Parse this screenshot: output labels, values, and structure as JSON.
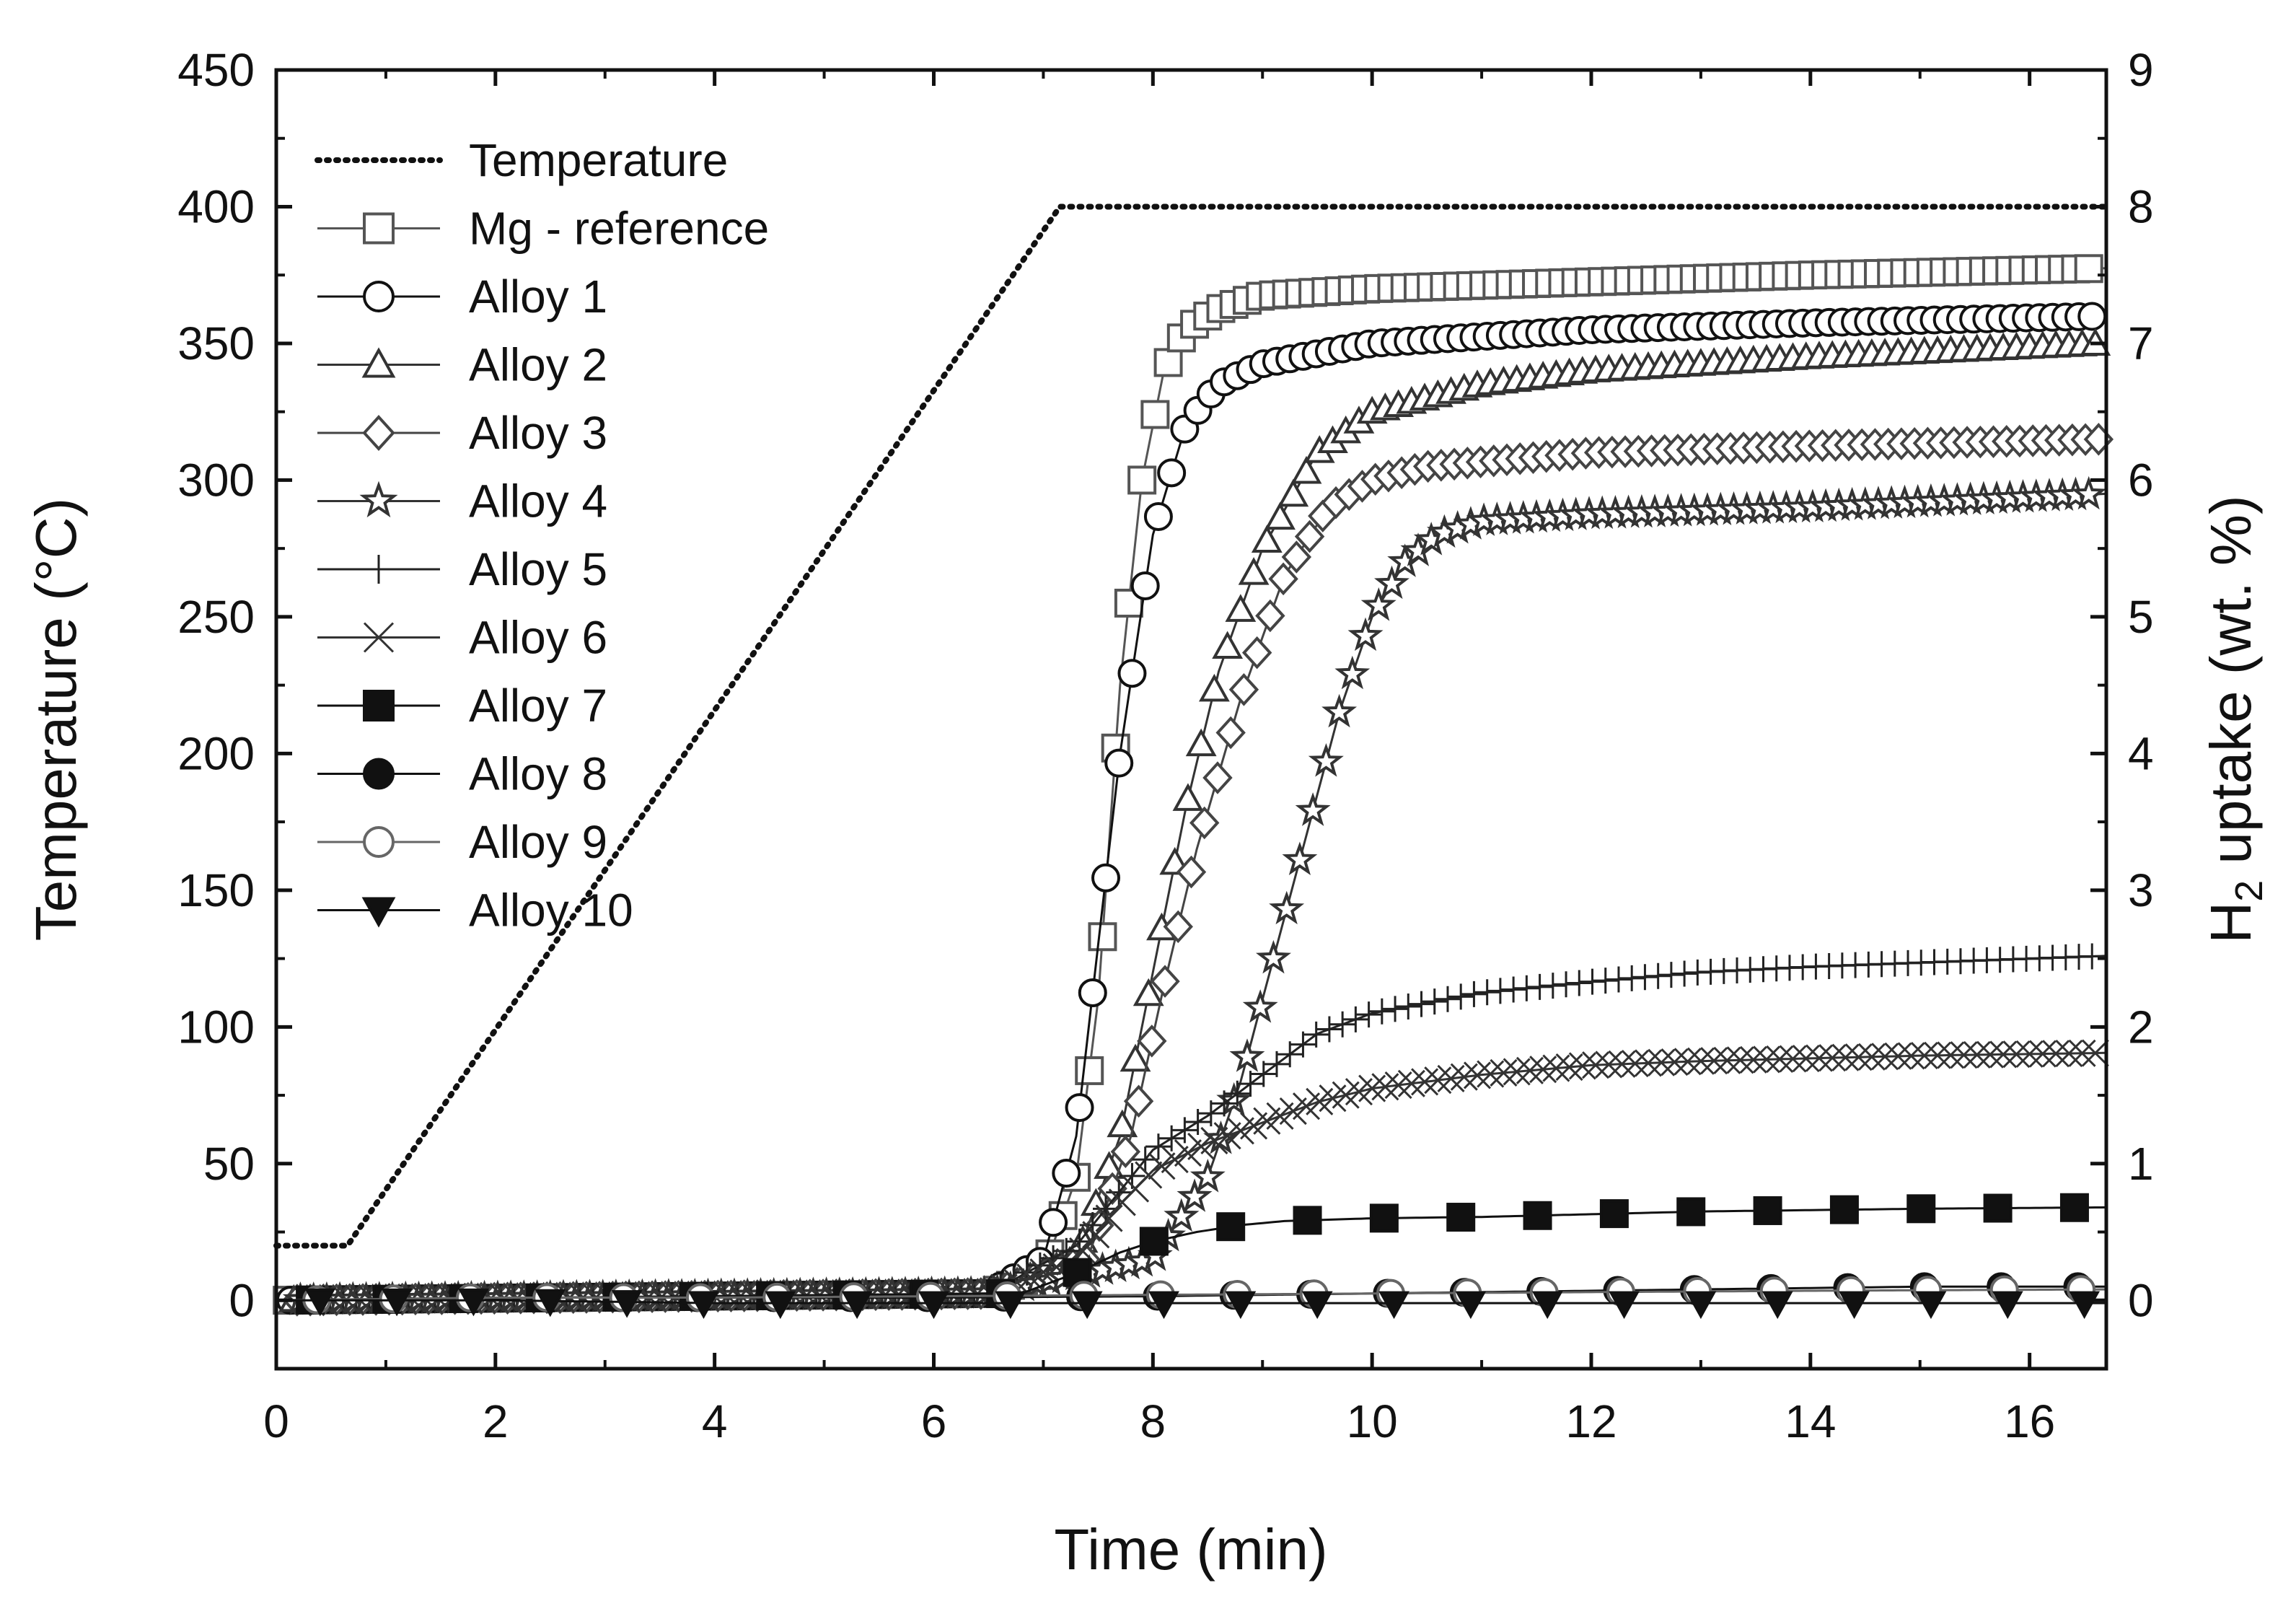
{
  "chart_data": {
    "type": "line",
    "title": "",
    "xlabel": "Time (min)",
    "ylabel": "Temperature (°C)",
    "y2label_prefix": "H",
    "y2label_sub": "2",
    "y2label_suffix": " uptake (wt. %)",
    "xlim": [
      0,
      16.7
    ],
    "ylim": [
      -25,
      450
    ],
    "y2lim": [
      -0.5,
      9
    ],
    "x_ticks": [
      "0",
      "2",
      "4",
      "6",
      "8",
      "10",
      "12",
      "14",
      "16"
    ],
    "y_ticks": [
      "0",
      "50",
      "100",
      "150",
      "200",
      "250",
      "300",
      "350",
      "400",
      "450"
    ],
    "y2_ticks": [
      "0",
      "1",
      "2",
      "3",
      "4",
      "5",
      "6",
      "7",
      "8",
      "9"
    ],
    "legend_position": "top-left",
    "temperature": {
      "name": "Temperature",
      "x": [
        0,
        0.65,
        7.15,
        16.7
      ],
      "y": [
        20,
        20,
        400,
        400
      ]
    },
    "series": [
      {
        "name": "Mg - reference",
        "marker": "square-open",
        "color": "#555555",
        "x": [
          0,
          6.5,
          7.0,
          7.3,
          7.5,
          7.7,
          7.9,
          8.1,
          8.3,
          8.6,
          9.0,
          10,
          12,
          14,
          16.7
        ],
        "y": [
          0,
          0.05,
          0.2,
          0.9,
          2.2,
          4.5,
          6.0,
          6.8,
          7.1,
          7.25,
          7.35,
          7.4,
          7.45,
          7.5,
          7.55
        ]
      },
      {
        "name": "Alloy 1",
        "marker": "circle-open",
        "color": "#111111",
        "x": [
          0,
          6.5,
          7.0,
          7.3,
          7.5,
          7.7,
          8.0,
          8.3,
          8.6,
          9.0,
          10,
          12,
          14,
          16.7
        ],
        "y": [
          0,
          0.05,
          0.3,
          1.2,
          2.6,
          4.0,
          5.6,
          6.4,
          6.7,
          6.85,
          7.0,
          7.1,
          7.15,
          7.2
        ]
      },
      {
        "name": "Alloy 2",
        "marker": "triangle-open",
        "color": "#333333",
        "x": [
          0,
          6.5,
          7.3,
          7.7,
          8.0,
          8.3,
          8.6,
          9.0,
          9.5,
          10,
          11,
          12,
          14,
          16.7
        ],
        "y": [
          0,
          0.05,
          0.3,
          1.2,
          2.4,
          3.6,
          4.6,
          5.5,
          6.2,
          6.5,
          6.7,
          6.8,
          6.9,
          7.0
        ]
      },
      {
        "name": "Alloy 3",
        "marker": "diamond-open",
        "color": "#444444",
        "x": [
          0,
          6.5,
          7.4,
          7.8,
          8.1,
          8.4,
          8.8,
          9.2,
          9.6,
          10,
          10.5,
          12,
          14,
          16.7
        ],
        "y": [
          0,
          0.05,
          0.3,
          1.2,
          2.3,
          3.3,
          4.4,
          5.3,
          5.8,
          6.0,
          6.1,
          6.2,
          6.25,
          6.3
        ]
      },
      {
        "name": "Alloy 4",
        "marker": "star-open",
        "color": "#333333",
        "x": [
          0,
          6.5,
          8.0,
          8.5,
          8.8,
          9.1,
          9.4,
          9.7,
          10,
          10.3,
          10.6,
          11,
          12,
          14,
          16.7
        ],
        "y": [
          0,
          0.05,
          0.3,
          0.9,
          1.6,
          2.5,
          3.4,
          4.3,
          5.0,
          5.4,
          5.6,
          5.7,
          5.75,
          5.8,
          5.9
        ]
      },
      {
        "name": "Alloy 5",
        "marker": "plus",
        "color": "#222222",
        "x": [
          0,
          6.5,
          7.3,
          7.7,
          8.0,
          8.5,
          9.0,
          9.5,
          10,
          11,
          12,
          13,
          14,
          15,
          16.7
        ],
        "y": [
          0,
          0.05,
          0.4,
          0.8,
          1.1,
          1.35,
          1.65,
          1.95,
          2.1,
          2.25,
          2.33,
          2.4,
          2.44,
          2.47,
          2.52
        ]
      },
      {
        "name": "Alloy 6",
        "marker": "cross",
        "color": "#333333",
        "x": [
          0,
          6.5,
          7.3,
          7.7,
          8.0,
          8.5,
          9.0,
          9.5,
          10,
          11,
          12,
          13,
          14,
          15,
          16.7
        ],
        "y": [
          0,
          0.05,
          0.3,
          0.7,
          0.95,
          1.15,
          1.3,
          1.45,
          1.55,
          1.65,
          1.72,
          1.75,
          1.77,
          1.79,
          1.81
        ]
      },
      {
        "name": "Alloy 7",
        "marker": "square-filled",
        "color": "#111111",
        "x": [
          0,
          6.8,
          7.3,
          7.7,
          8.0,
          8.4,
          8.8,
          9.2,
          10,
          11,
          12,
          13,
          14,
          15,
          16.7
        ],
        "y": [
          0,
          0.05,
          0.2,
          0.35,
          0.43,
          0.5,
          0.55,
          0.58,
          0.6,
          0.61,
          0.63,
          0.65,
          0.66,
          0.67,
          0.68
        ]
      },
      {
        "name": "Alloy 8",
        "marker": "circle-filled",
        "color": "#111111",
        "x": [
          0,
          2,
          4,
          6,
          8,
          9,
          10,
          11,
          12,
          13,
          14,
          15,
          16,
          16.7
        ],
        "y": [
          0,
          0.02,
          0.02,
          0.02,
          0.03,
          0.04,
          0.05,
          0.06,
          0.07,
          0.08,
          0.09,
          0.1,
          0.1,
          0.1
        ]
      },
      {
        "name": "Alloy 9",
        "marker": "circle-open",
        "color": "#666666",
        "x": [
          0,
          2,
          4,
          6,
          8,
          10,
          12,
          14,
          16.7
        ],
        "y": [
          0,
          0.02,
          0.02,
          0.03,
          0.04,
          0.05,
          0.06,
          0.07,
          0.08
        ]
      },
      {
        "name": "Alloy 10",
        "marker": "triangle-down-filled",
        "color": "#111111",
        "x": [
          0,
          2,
          4,
          6,
          8,
          10,
          12,
          14,
          16.7
        ],
        "y": [
          0,
          0.0,
          -0.02,
          -0.02,
          -0.02,
          -0.02,
          -0.02,
          -0.02,
          -0.02
        ]
      }
    ]
  }
}
